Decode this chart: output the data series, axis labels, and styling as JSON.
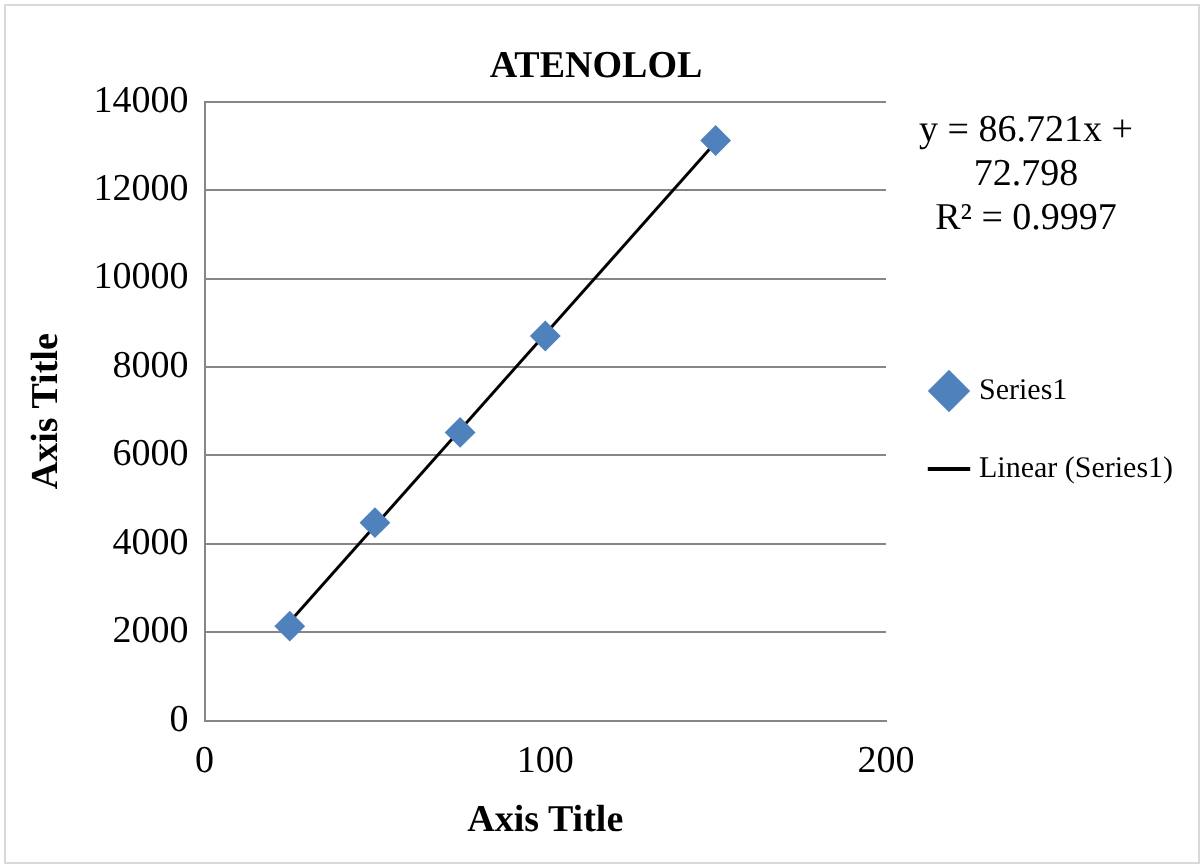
{
  "chart_data": {
    "type": "scatter",
    "title": "ATENOLOL",
    "xlabel": "Axis Title",
    "ylabel": "Axis Title",
    "xlim": [
      0,
      200
    ],
    "xticks": [
      0,
      100,
      200
    ],
    "ylim": [
      0,
      14000
    ],
    "yticks": [
      0,
      2000,
      4000,
      6000,
      8000,
      10000,
      12000,
      14000
    ],
    "grid": "y",
    "legend": "right",
    "marker": "diamond",
    "annotations": [
      "y = 86.721x + 72.798",
      "R² = 0.9997"
    ],
    "series": [
      {
        "name": "Series1",
        "type": "scatter",
        "color": "#4f81bd",
        "x": [
          25,
          50,
          75,
          100,
          150
        ],
        "values": [
          2140,
          4480,
          6520,
          8700,
          13120
        ]
      },
      {
        "name": "Linear (Series1)",
        "type": "line",
        "marker": "none",
        "color": "#000000",
        "x": [
          25,
          150
        ],
        "values": [
          2240,
          13080
        ]
      }
    ]
  }
}
